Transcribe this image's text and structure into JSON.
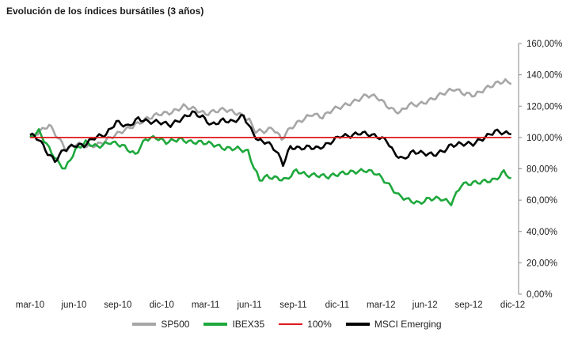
{
  "chart_data": {
    "type": "line",
    "title": "Evolución de los índices bursátiles (3 años)",
    "x_tick_labels": [
      "mar-10",
      "jun-10",
      "sep-10",
      "dic-10",
      "mar-11",
      "jun-11",
      "sep-11",
      "dic-11",
      "mar-12",
      "jun-12",
      "sep-12",
      "dic-12"
    ],
    "y_tick_labels": [
      "0,00%",
      "20,00%",
      "40,00%",
      "60,00%",
      "80,00%",
      "100,00%",
      "120,00%",
      "140,00%",
      "160,00%"
    ],
    "ylim": [
      0,
      160
    ],
    "y_axis_side": "right",
    "grid": false,
    "legend_position": "bottom",
    "x_unit": "months since mar-10",
    "series": [
      {
        "name": "SP500",
        "color": "#a6a6a6",
        "points": [
          [
            0,
            100
          ],
          [
            0.7,
            104
          ],
          [
            1.3,
            108
          ],
          [
            1.9,
            100
          ],
          [
            2.5,
            92
          ],
          [
            3.2,
            96
          ],
          [
            4,
            94
          ],
          [
            4.8,
            96
          ],
          [
            5.5,
            100
          ],
          [
            6.3,
            104
          ],
          [
            7.2,
            108
          ],
          [
            8,
            112
          ],
          [
            8.8,
            115
          ],
          [
            9.7,
            116
          ],
          [
            10.5,
            120
          ],
          [
            11.3,
            118
          ],
          [
            12,
            115
          ],
          [
            12.7,
            117
          ],
          [
            13.3,
            118
          ],
          [
            14.3,
            115
          ],
          [
            15,
            111
          ],
          [
            15.4,
            104
          ],
          [
            16,
            104
          ],
          [
            16.6,
            106
          ],
          [
            17.2,
            99
          ],
          [
            17.8,
            106
          ],
          [
            18.4,
            110
          ],
          [
            19.3,
            115
          ],
          [
            20,
            113
          ],
          [
            20.7,
            118
          ],
          [
            21.4,
            120
          ],
          [
            22.2,
            123
          ],
          [
            23,
            127
          ],
          [
            23.7,
            126
          ],
          [
            24.2,
            122
          ],
          [
            24.7,
            118
          ],
          [
            25.3,
            116
          ],
          [
            25.9,
            121
          ],
          [
            26.6,
            121
          ],
          [
            27.4,
            124
          ],
          [
            28.2,
            128
          ],
          [
            29,
            131
          ],
          [
            29.7,
            128
          ],
          [
            30.4,
            127
          ],
          [
            31.3,
            132
          ],
          [
            32,
            135
          ],
          [
            32.5,
            136
          ],
          [
            32.9,
            134
          ]
        ]
      },
      {
        "name": "IBEX35",
        "color": "#1ea83c",
        "points": [
          [
            0,
            100
          ],
          [
            0.6,
            104
          ],
          [
            1.3,
            93
          ],
          [
            2,
            83
          ],
          [
            2.4,
            80
          ],
          [
            3.1,
            92
          ],
          [
            3.8,
            97
          ],
          [
            4.6,
            94
          ],
          [
            5.5,
            97
          ],
          [
            6.3,
            95
          ],
          [
            7.2,
            89
          ],
          [
            7.9,
            99
          ],
          [
            8.6,
            100
          ],
          [
            9.3,
            97
          ],
          [
            10.2,
            99
          ],
          [
            11,
            97
          ],
          [
            11.7,
            97
          ],
          [
            12.4,
            96
          ],
          [
            13.3,
            93
          ],
          [
            14.2,
            93
          ],
          [
            14.9,
            91
          ],
          [
            15.3,
            81
          ],
          [
            15.7,
            73
          ],
          [
            16.2,
            75
          ],
          [
            16.9,
            74
          ],
          [
            17.5,
            73
          ],
          [
            18.2,
            79
          ],
          [
            18.9,
            76
          ],
          [
            19.6,
            76
          ],
          [
            20.4,
            75
          ],
          [
            21.2,
            77
          ],
          [
            22.1,
            78
          ],
          [
            23,
            79
          ],
          [
            23.7,
            77
          ],
          [
            24.4,
            71
          ],
          [
            25.2,
            63
          ],
          [
            25.9,
            60
          ],
          [
            26.6,
            58
          ],
          [
            27.3,
            61
          ],
          [
            28.1,
            61
          ],
          [
            28.8,
            58
          ],
          [
            29.5,
            70
          ],
          [
            30.3,
            71
          ],
          [
            31.1,
            72
          ],
          [
            31.8,
            73
          ],
          [
            32.4,
            78
          ],
          [
            32.9,
            74
          ]
        ]
      },
      {
        "name": "100%",
        "color": "#e0191c",
        "points": [
          [
            0,
            100
          ],
          [
            32.9,
            100
          ]
        ]
      },
      {
        "name": "MSCI Emerging",
        "color": "#000000",
        "points": [
          [
            0,
            102
          ],
          [
            0.6,
            99
          ],
          [
            1.2,
            90
          ],
          [
            1.7,
            85
          ],
          [
            2.3,
            92
          ],
          [
            3,
            95
          ],
          [
            3.7,
            95
          ],
          [
            4.4,
            100
          ],
          [
            5.2,
            102
          ],
          [
            5.9,
            110
          ],
          [
            6.7,
            107
          ],
          [
            7.4,
            112
          ],
          [
            8.1,
            110
          ],
          [
            8.8,
            110
          ],
          [
            9.6,
            108
          ],
          [
            10.4,
            112
          ],
          [
            11.1,
            116
          ],
          [
            11.8,
            113
          ],
          [
            12.4,
            108
          ],
          [
            13.2,
            111
          ],
          [
            13.9,
            110
          ],
          [
            14.6,
            114
          ],
          [
            15.1,
            105
          ],
          [
            15.6,
            98
          ],
          [
            16.2,
            97
          ],
          [
            16.8,
            92
          ],
          [
            17.3,
            83
          ],
          [
            17.8,
            94
          ],
          [
            18.4,
            93
          ],
          [
            19.1,
            94
          ],
          [
            19.7,
            93
          ],
          [
            20.4,
            96
          ],
          [
            21.2,
            101
          ],
          [
            21.9,
            101
          ],
          [
            22.6,
            103
          ],
          [
            23.2,
            102
          ],
          [
            23.9,
            100
          ],
          [
            24.4,
            98
          ],
          [
            24.9,
            90
          ],
          [
            25.5,
            86
          ],
          [
            26.2,
            91
          ],
          [
            26.9,
            90
          ],
          [
            27.6,
            89
          ],
          [
            28.2,
            91
          ],
          [
            28.8,
            95
          ],
          [
            29.5,
            96
          ],
          [
            30.3,
            96
          ],
          [
            31.1,
            100
          ],
          [
            31.8,
            104
          ],
          [
            32.4,
            103
          ],
          [
            32.9,
            102
          ]
        ]
      }
    ]
  }
}
